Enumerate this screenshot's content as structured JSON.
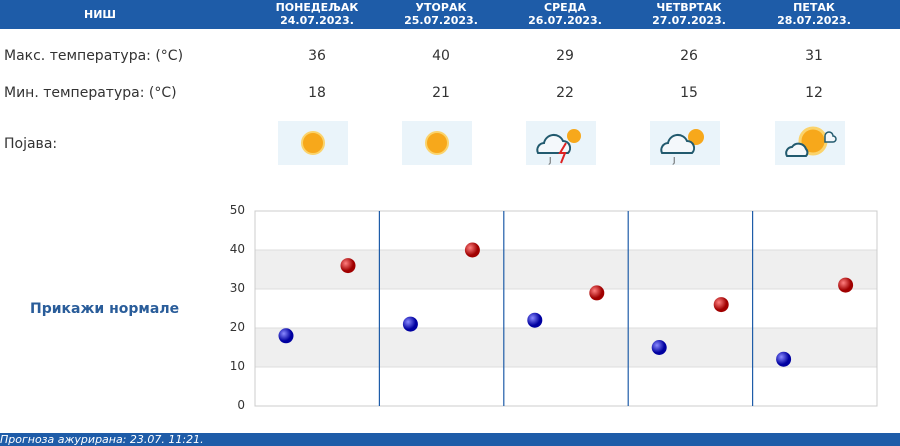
{
  "header": {
    "city": "НИШ",
    "days": [
      {
        "name": "ПОНЕДЕЉАК",
        "date": "24.07.2023.",
        "max": "36",
        "min": "18",
        "icon": "sunny-icon"
      },
      {
        "name": "УТОРАК",
        "date": "25.07.2023.",
        "max": "40",
        "min": "21",
        "icon": "sunny-icon"
      },
      {
        "name": "СРЕДА",
        "date": "26.07.2023.",
        "max": "29",
        "min": "22",
        "icon": "thunderstorm-icon"
      },
      {
        "name": "ЧЕТВРТАК",
        "date": "27.07.2023.",
        "max": "26",
        "min": "15",
        "icon": "partly-cloudy-rain-icon"
      },
      {
        "name": "ПЕТАК",
        "date": "28.07.2023.",
        "max": "31",
        "min": "12",
        "icon": "partly-sunny-icon"
      }
    ]
  },
  "rows": {
    "max_label": "Макс. температура: (°C)",
    "min_label": "Мин. температура: (°C)",
    "phenomenon_label": "Појава:"
  },
  "show_normals": "Прикажи нормале",
  "chart_data": {
    "type": "scatter",
    "categories": [
      "24.07.2023.",
      "25.07.2023.",
      "26.07.2023.",
      "27.07.2023.",
      "28.07.2023."
    ],
    "ylim": [
      0,
      50
    ],
    "yticks": [
      "0",
      "10",
      "20",
      "30",
      "40",
      "50"
    ],
    "series": [
      {
        "values": [
          18,
          21,
          22,
          15,
          12
        ],
        "color": "#1010c0"
      },
      {
        "values": [
          36,
          40,
          29,
          26,
          31
        ],
        "color": "#c00000"
      }
    ]
  },
  "footer": "Прогноза ажурирана:  23.07. 11:21."
}
